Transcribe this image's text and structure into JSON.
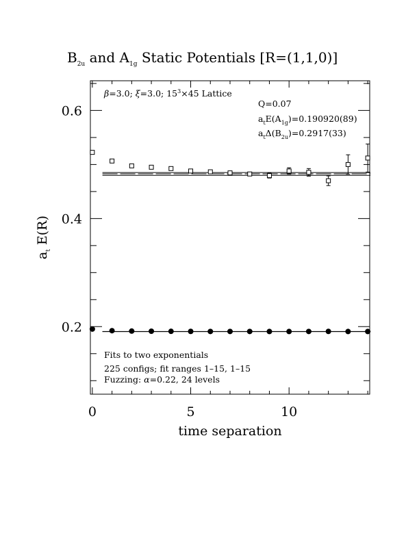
{
  "chart_data": {
    "type": "scatter",
    "title": {
      "prefix": "B",
      "prefix_sub": "2u",
      "mid": " and A",
      "mid_sub": "1g",
      "suffix": " Static Potentials [R=(1,1,0)]"
    },
    "xlabel": "time separation",
    "ylabel": {
      "main": "a",
      "sub": "t",
      "rest": " E(R)"
    },
    "xlim": [
      -0.1,
      14.1
    ],
    "ylim": [
      0.075,
      0.655
    ],
    "x_ticks": [
      0,
      5,
      10
    ],
    "y_ticks": [
      0.2,
      0.4,
      0.6
    ],
    "x_tick_labels": [
      "0",
      "5",
      "10"
    ],
    "y_tick_labels": [
      "0.2",
      "0.4",
      "0.6"
    ],
    "annotations": {
      "lattice": {
        "beta": "β",
        "beta_val": "=3.0; ",
        "xi": "ξ",
        "xi_val": "=3.0; 15",
        "exp": "3",
        "tail": "×45 Lattice"
      },
      "q": "Q=0.07",
      "energy_a1g": {
        "a": "a",
        "a_sub": "t",
        "mid": "E(A",
        "mid_sub": "1g",
        "tail": ")=0.190920(89)"
      },
      "delta_b2u": {
        "a": "a",
        "a_sub": "t",
        "mid": "Δ(B",
        "mid_sub": "2u",
        "tail": ")=0.2917(33)"
      },
      "fits": "Fits to two exponentials",
      "configs": "225 configs; fit ranges 1–15, 1–15",
      "fuzzing": {
        "pre": "Fuzzing: ",
        "alpha": "α",
        "tail": "=0.22, 24 levels"
      }
    },
    "series": [
      {
        "marker": "filled-circle",
        "x": [
          0,
          1,
          2,
          3,
          4,
          5,
          6,
          7,
          8,
          9,
          10,
          11,
          12,
          13,
          14
        ],
        "y": [
          0.1955,
          0.1925,
          0.1918,
          0.1915,
          0.1913,
          0.1912,
          0.1911,
          0.1911,
          0.1911,
          0.191,
          0.191,
          0.1911,
          0.1912,
          0.191,
          0.191
        ],
        "err": [
          0.0006,
          0.0005,
          0.0004,
          0.0004,
          0.0004,
          0.0004,
          0.0004,
          0.0004,
          0.0004,
          0.0004,
          0.0004,
          0.0004,
          0.0005,
          0.0005,
          0.0006
        ]
      },
      {
        "marker": "open-square",
        "x": [
          0,
          1,
          2,
          3,
          4,
          5,
          6,
          7,
          8,
          9,
          10,
          11,
          12,
          13,
          14
        ],
        "y": [
          0.5225,
          0.5065,
          0.4975,
          0.495,
          0.4925,
          0.488,
          0.4865,
          0.4845,
          0.4825,
          0.4795,
          0.488,
          0.4855,
          0.47,
          0.5,
          0.512
        ],
        "err": [
          0.0015,
          0.0015,
          0.0015,
          0.0018,
          0.002,
          0.0022,
          0.0025,
          0.0028,
          0.003,
          0.0045,
          0.006,
          0.007,
          0.009,
          0.018,
          0.026
        ]
      }
    ],
    "fit_bands": [
      {
        "x_range": [
          1,
          14
        ],
        "y_center": 0.1909,
        "y_lower": 0.1907,
        "y_upper": 0.1911
      },
      {
        "x_range": [
          1,
          14
        ],
        "y_center": 0.4827,
        "y_lower": 0.48,
        "y_upper": 0.4852
      }
    ]
  }
}
